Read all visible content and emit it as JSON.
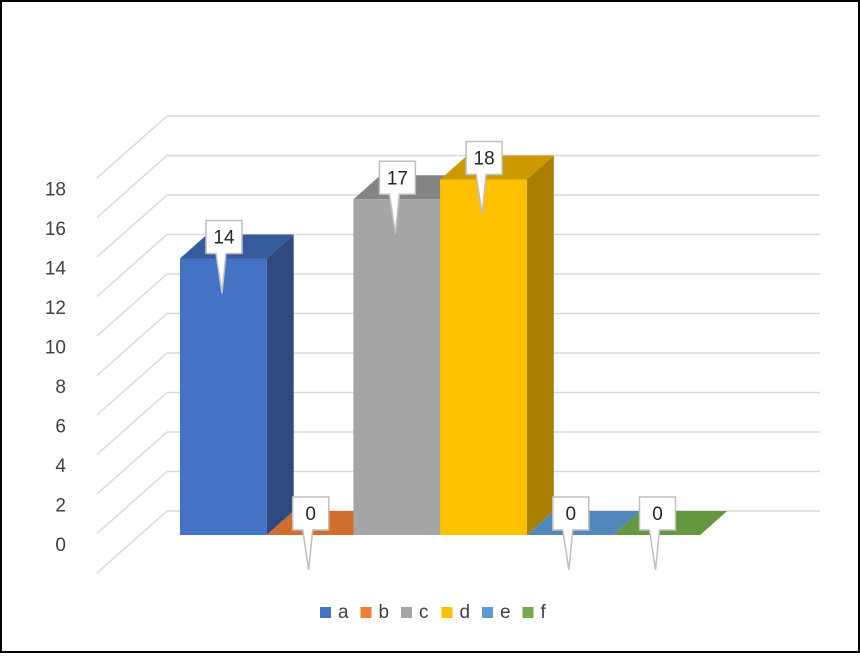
{
  "chart_data": {
    "type": "bar",
    "style": "3d-column",
    "categories": [
      "a",
      "b",
      "c",
      "d",
      "e",
      "f"
    ],
    "values": [
      14,
      0,
      17,
      18,
      0,
      0
    ],
    "data_labels": [
      "14",
      "0",
      "17",
      "18",
      "0",
      "0"
    ],
    "colors": [
      "#4472C4",
      "#ED7D31",
      "#A5A5A5",
      "#FFC000",
      "#5B9BD5",
      "#70AD47"
    ],
    "ylim": [
      0,
      18
    ],
    "yticks": [
      0,
      2,
      4,
      6,
      8,
      10,
      12,
      14,
      16,
      18
    ],
    "ytick_labels": [
      "0",
      "2",
      "4",
      "6",
      "8",
      "10",
      "12",
      "14",
      "16",
      "18"
    ],
    "grid": true,
    "legend": {
      "position": "bottom",
      "entries": [
        "a",
        "b",
        "c",
        "d",
        "e",
        "f"
      ]
    },
    "title": "",
    "xlabel": "",
    "ylabel": ""
  }
}
